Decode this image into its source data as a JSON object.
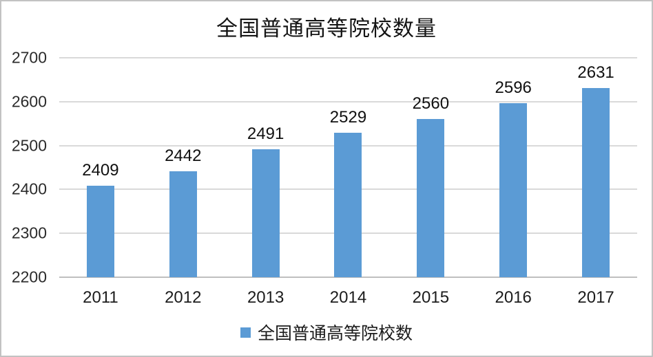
{
  "chart_data": {
    "type": "bar",
    "title": "全国普通高等院校数量",
    "categories": [
      "2011",
      "2012",
      "2013",
      "2014",
      "2015",
      "2016",
      "2017"
    ],
    "series": [
      {
        "name": "全国普通高等院校数",
        "values": [
          2409,
          2442,
          2491,
          2529,
          2560,
          2596,
          2631
        ]
      }
    ],
    "data_labels": [
      2409,
      2442,
      2491,
      2529,
      2560,
      2596,
      2631
    ],
    "xlabel": "",
    "ylabel": "",
    "ylim": [
      2200,
      2700
    ],
    "yticks": [
      2200,
      2300,
      2400,
      2500,
      2600,
      2700
    ],
    "grid": true,
    "legend_position": "bottom",
    "legend_label": "全国普通高等院校数",
    "colors": {
      "bar": "#5B9BD5",
      "gridline": "#d9d9d9",
      "axis_line": "#bfbfbf",
      "text": "#1c1c1c",
      "frame_border": "#c2c2c2"
    }
  }
}
